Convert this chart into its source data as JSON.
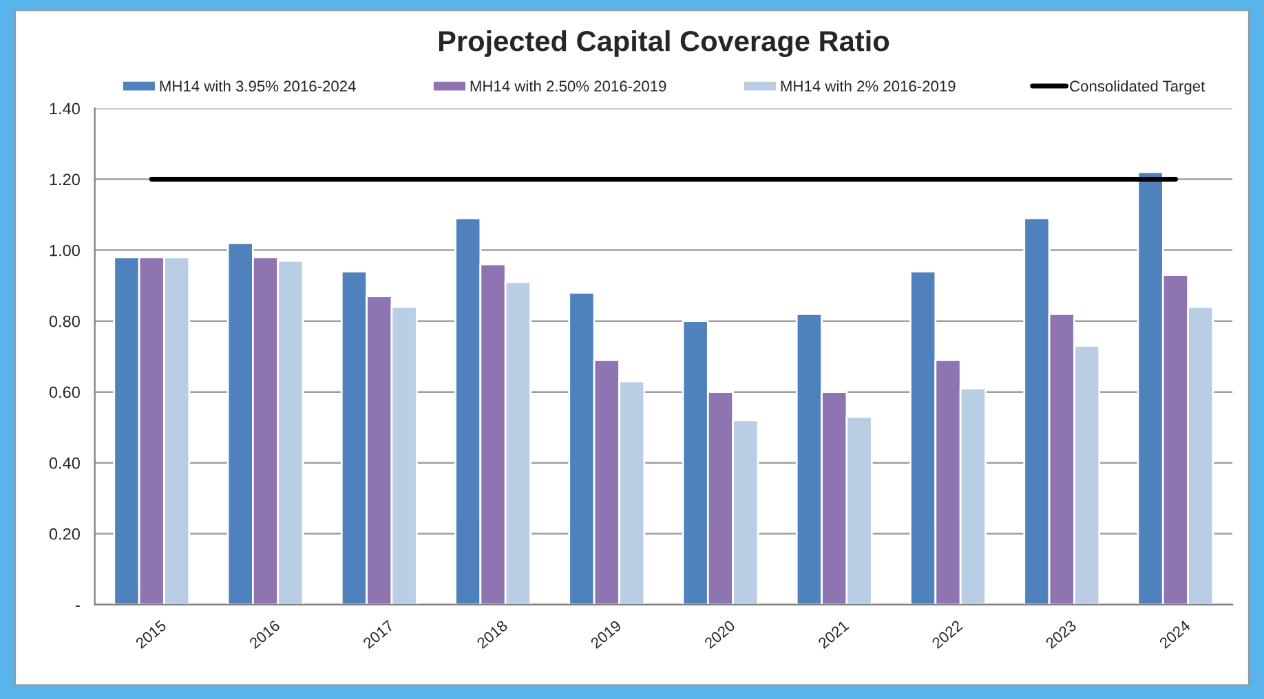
{
  "chart_data": {
    "type": "bar",
    "title": "Projected Capital Coverage Ratio",
    "categories": [
      "2015",
      "2016",
      "2017",
      "2018",
      "2019",
      "2020",
      "2021",
      "2022",
      "2023",
      "2024"
    ],
    "series": [
      {
        "name": "MH14 with 3.95% 2016-2024",
        "color": "#4f81bd",
        "values": [
          0.98,
          1.02,
          0.94,
          1.09,
          0.88,
          0.8,
          0.82,
          0.94,
          1.09,
          1.22
        ]
      },
      {
        "name": "MH14 with 2.50% 2016-2019",
        "color": "#8e74b0",
        "values": [
          0.98,
          0.98,
          0.87,
          0.96,
          0.69,
          0.6,
          0.6,
          0.69,
          0.82,
          0.93
        ]
      },
      {
        "name": "MH14 with 2% 2016-2019",
        "color": "#b9cde5",
        "values": [
          0.98,
          0.97,
          0.84,
          0.91,
          0.63,
          0.52,
          0.53,
          0.61,
          0.73,
          0.84
        ]
      },
      {
        "name": "Consolidated Target",
        "type": "line",
        "color": "#000000",
        "values": [
          1.2,
          1.2,
          1.2,
          1.2,
          1.2,
          1.2,
          1.2,
          1.2,
          1.2,
          1.2
        ]
      }
    ],
    "ylim": [
      0,
      1.4
    ],
    "yticks": [
      {
        "value": 0,
        "label": "-"
      },
      {
        "value": 0.2,
        "label": "0.20"
      },
      {
        "value": 0.4,
        "label": "0.40"
      },
      {
        "value": 0.6,
        "label": "0.60"
      },
      {
        "value": 0.8,
        "label": "0.80"
      },
      {
        "value": 1.0,
        "label": "1.00"
      },
      {
        "value": 1.2,
        "label": "1.20"
      },
      {
        "value": 1.4,
        "label": "1.40"
      }
    ],
    "grid": "y",
    "legend": "top"
  }
}
